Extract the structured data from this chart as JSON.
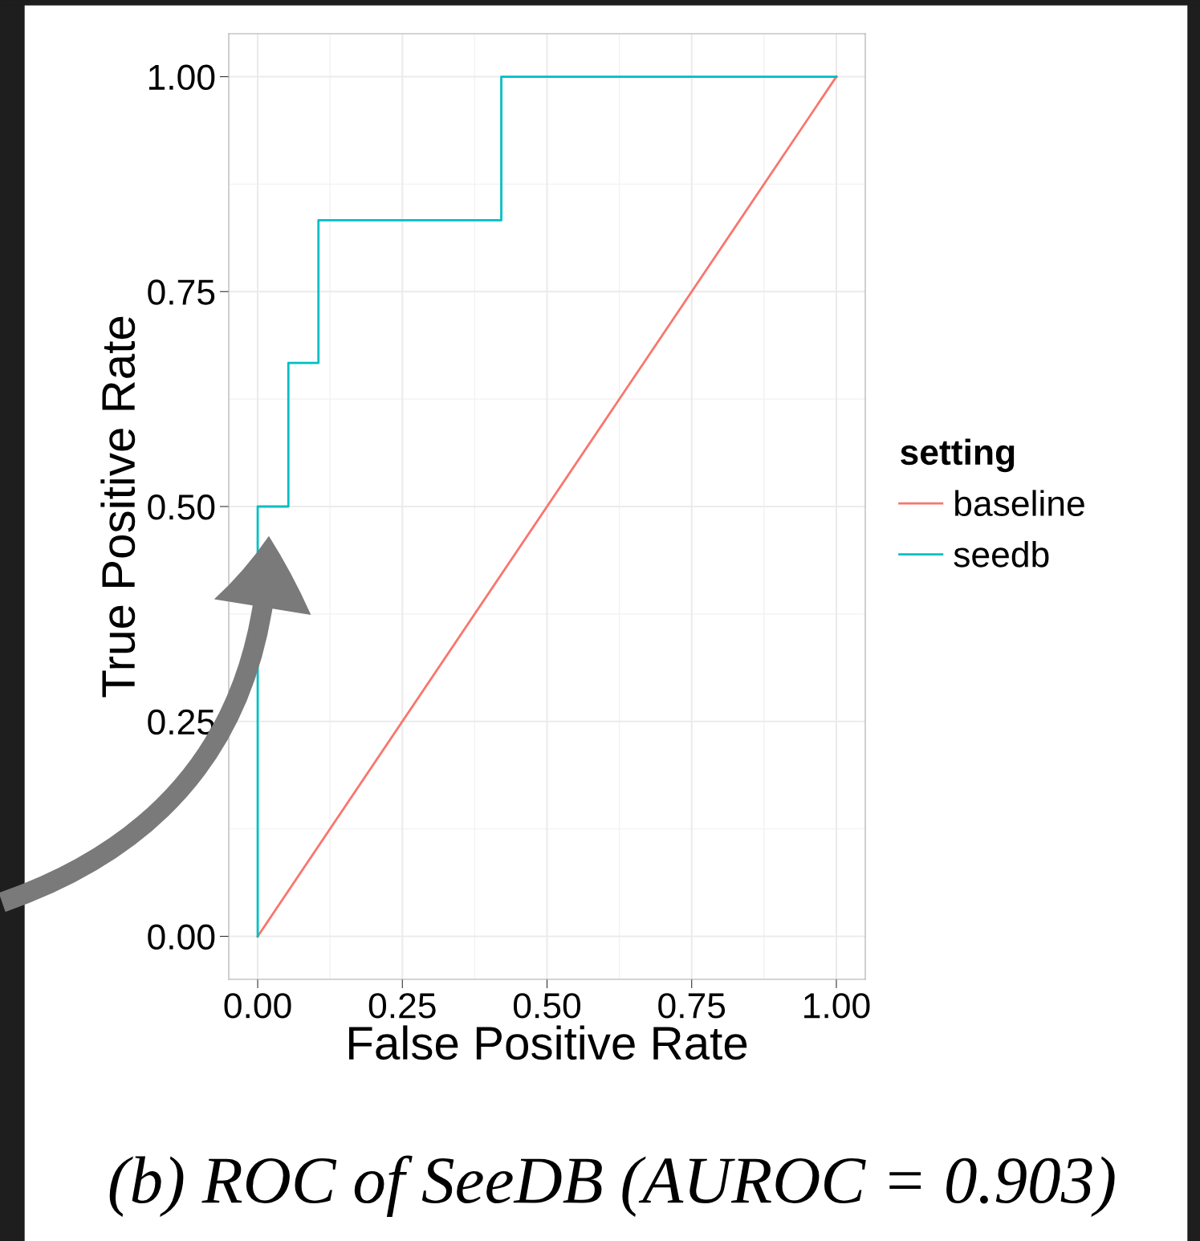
{
  "chart_data": {
    "type": "step",
    "xlabel": "False Positive Rate",
    "ylabel": "True Positive Rate",
    "legend_title": "setting",
    "series": [
      {
        "name": "baseline",
        "type": "line",
        "color": "#f8766d",
        "x": [
          0,
          1
        ],
        "values": [
          0,
          1
        ]
      },
      {
        "name": "seedb",
        "color": "#00bfc4",
        "x": [
          0,
          0,
          0.053,
          0.105,
          0.421,
          1
        ],
        "values": [
          0,
          0.5,
          0.667,
          0.833,
          1,
          1
        ]
      }
    ],
    "xlim": [
      -0.05,
      1.05
    ],
    "ylim": [
      -0.05,
      1.05
    ],
    "xticks": [
      {
        "value": 0,
        "label": "0.00"
      },
      0.25,
      {
        "value": 0.5,
        "label": "0.50"
      },
      0.75,
      {
        "value": 1,
        "label": "1.00"
      }
    ],
    "yticks": [
      {
        "value": 0,
        "label": "0.00"
      },
      0.25,
      {
        "value": 0.5,
        "label": "0.50"
      },
      0.75,
      {
        "value": 1,
        "label": "1.00"
      }
    ],
    "grid": true,
    "legend": "right",
    "annotations": [
      "(b) ROC of SeeDB (AUROC = 0.903)"
    ]
  }
}
